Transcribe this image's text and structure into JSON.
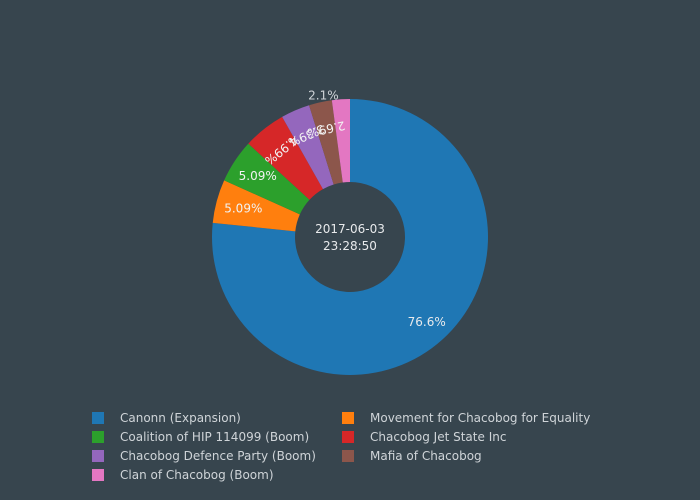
{
  "chart_data": {
    "type": "pie",
    "hole": true,
    "center_text": [
      "2017-06-03",
      "23:28:50"
    ],
    "slices": [
      {
        "name": "Canonn (Expansion)",
        "value": 76.6,
        "label": "76.6%",
        "color": "#1f77b4"
      },
      {
        "name": "Movement for Chacobog for Equality",
        "value": 5.09,
        "label": "5.09%",
        "color": "#ff7f0e"
      },
      {
        "name": "Coalition of HIP 114099 (Boom)",
        "value": 5.09,
        "label": "5.09%",
        "color": "#2ca02c"
      },
      {
        "name": "Chacobog Jet State Inc",
        "value": 4.99,
        "label": "4.99%",
        "color": "#d62728"
      },
      {
        "name": "Chacobog Defence Party (Boom)",
        "value": 3.39,
        "label": "3.39%",
        "color": "#9467bd"
      },
      {
        "name": "Mafia of Chacobog",
        "value": 2.69,
        "label": "2.69%",
        "color": "#8c564b"
      },
      {
        "name": "Clan of Chacobog (Boom)",
        "value": 2.1,
        "label": "2.1%",
        "color": "#e377c2"
      }
    ],
    "legend": {
      "position": "bottom",
      "entries": [
        "Canonn (Expansion)",
        "Movement for Chacobog for Equality",
        "Coalition of HIP 114099 (Boom)",
        "Chacobog Jet State Inc",
        "Chacobog Defence Party (Boom)",
        "Mafia of Chacobog",
        "Clan of Chacobog (Boom)"
      ]
    },
    "colors": {
      "background": "#37454e",
      "text": "#cfd4d8"
    }
  }
}
